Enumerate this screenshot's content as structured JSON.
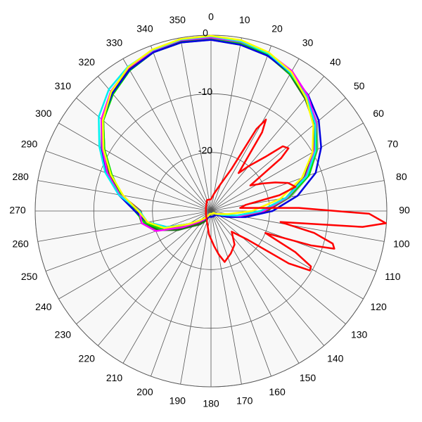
{
  "chart_data": {
    "type": "polar",
    "rlim": [
      -30,
      0
    ],
    "rticks": [
      -20,
      -10,
      0
    ],
    "thetaticks": [
      0,
      10,
      20,
      30,
      40,
      50,
      60,
      70,
      80,
      90,
      100,
      110,
      120,
      130,
      140,
      150,
      160,
      170,
      180,
      190,
      200,
      210,
      220,
      230,
      240,
      250,
      260,
      270,
      280,
      290,
      300,
      310,
      320,
      330,
      340,
      350
    ],
    "theta": [
      0,
      10,
      20,
      30,
      40,
      50,
      60,
      70,
      80,
      90,
      100,
      110,
      120,
      130,
      140,
      150,
      160,
      170,
      180,
      190,
      200,
      210,
      220,
      230,
      240,
      250,
      260,
      270,
      280,
      290,
      300,
      310,
      320,
      330,
      340,
      350
    ],
    "grid": true,
    "series": [
      {
        "color": "#a0a0a0",
        "values": [
          -0.8,
          -1.2,
          -1.8,
          -3.0,
          -4.6,
          -6.4,
          -9.0,
          -12.2,
          -16.2,
          -20.5,
          -24.5,
          -27.5,
          -29,
          -29.5,
          -29.5,
          -29.5,
          -29.5,
          -29.5,
          -29.5,
          -29.5,
          -29.5,
          -29,
          -28,
          -27,
          -25,
          -21.5,
          -18.8,
          -17.6,
          -14.2,
          -11.2,
          -8.4,
          -5.6,
          -3.6,
          -2.1,
          -1.2,
          -0.8
        ]
      },
      {
        "color": "#804020",
        "values": [
          -0.3,
          -0.8,
          -1.6,
          -2.9,
          -4.8,
          -6.8,
          -9.3,
          -12.5,
          -16.5,
          -20.5,
          -24.5,
          -27.5,
          -29,
          -29,
          -29,
          -29,
          -29,
          -29,
          -29,
          -29,
          -29,
          -28.5,
          -27.5,
          -26.5,
          -24,
          -20.5,
          -18.5,
          -18,
          -14.5,
          -11.5,
          -8.8,
          -5.8,
          -3.6,
          -2,
          -1,
          -0.4
        ]
      },
      {
        "color": "#207020",
        "values": [
          -0.5,
          -0.9,
          -1.7,
          -3.1,
          -5,
          -7,
          -9.8,
          -13,
          -17,
          -21.5,
          -25.5,
          -28,
          -29,
          -29.5,
          -29.5,
          -29.5,
          -29.5,
          -29.5,
          -29.5,
          -29.5,
          -29,
          -28,
          -27,
          -26,
          -23.5,
          -20.5,
          -18,
          -17.5,
          -14.5,
          -11.5,
          -9,
          -6,
          -3.8,
          -2.2,
          -1.2,
          -0.6
        ]
      },
      {
        "color": "#00e000",
        "values": [
          -0.7,
          -1,
          -1.6,
          -3,
          -4.6,
          -6.6,
          -9.2,
          -12.2,
          -16.5,
          -21,
          -25,
          -28,
          -29,
          -29.5,
          -29.5,
          -29.5,
          -29.5,
          -29.5,
          -29.5,
          -29.5,
          -29.5,
          -29,
          -28.5,
          -27.5,
          -25,
          -21,
          -18.5,
          -17,
          -14.5,
          -12,
          -9,
          -6,
          -4,
          -2.3,
          -1.2,
          -0.8
        ]
      },
      {
        "color": "#0000e0",
        "values": [
          -0.8,
          -1.2,
          -1.8,
          -2.8,
          -4.2,
          -6.0,
          -8.3,
          -11,
          -15,
          -19.5,
          -24,
          -27,
          -28.5,
          -29,
          -29,
          -29,
          -29,
          -29,
          -29,
          -29,
          -29,
          -28.5,
          -28,
          -27,
          -25.5,
          -22,
          -19,
          -17,
          -14,
          -11,
          -8.5,
          -5.8,
          -3.8,
          -2.2,
          -1.2,
          -0.8
        ]
      },
      {
        "color": "#ff00ff",
        "values": [
          -0.4,
          -0.7,
          -1.3,
          -2.4,
          -4.3,
          -6.6,
          -9.6,
          -12.8,
          -16.8,
          -21,
          -25,
          -28,
          -29,
          -29.5,
          -29.5,
          -29.5,
          -29.5,
          -29.5,
          -29.5,
          -29.5,
          -29.5,
          -29,
          -28,
          -27,
          -24.5,
          -20,
          -18,
          -17.8,
          -14.2,
          -11.2,
          -8.6,
          -5.6,
          -3.4,
          -1.8,
          -0.9,
          -0.4
        ]
      },
      {
        "color": "#00f0f0",
        "values": [
          -0.2,
          -0.6,
          -1.4,
          -2.8,
          -4.6,
          -6.8,
          -9.4,
          -12.6,
          -17,
          -21.5,
          -25.5,
          -28,
          -29,
          -29.5,
          -29.5,
          -29.5,
          -29.5,
          -29.5,
          -29.5,
          -29.5,
          -29.5,
          -29,
          -28.5,
          -27.5,
          -25.5,
          -22,
          -19,
          -17.8,
          -14,
          -10.8,
          -8,
          -5,
          -2.9,
          -1.6,
          -0.8,
          -0.3
        ]
      },
      {
        "color": "#ffff00",
        "values": [
          -0.1,
          -0.4,
          -1.2,
          -2.6,
          -4.8,
          -7.2,
          -10,
          -13.5,
          -18,
          -23,
          -27,
          -28.5,
          -29,
          -29.5,
          -29.5,
          -29.5,
          -29.5,
          -29.5,
          -29.5,
          -29.5,
          -29.5,
          -29,
          -28.5,
          -27.5,
          -25.5,
          -21.5,
          -19,
          -17.6,
          -14.8,
          -11.8,
          -8.8,
          -5.9,
          -3.5,
          -1.7,
          -0.7,
          -0.2
        ]
      },
      {
        "color": "#ff0000",
        "theta": [
          0,
          10,
          20,
          26,
          29,
          31,
          33,
          36,
          40,
          45,
          48,
          51,
          53,
          57,
          62,
          66,
          70,
          74,
          77,
          80,
          84,
          88,
          91,
          94,
          96,
          99,
          102,
          105,
          107,
          109,
          112,
          116,
          119,
          121,
          124,
          128,
          135,
          145,
          155,
          165,
          170,
          175,
          185,
          200,
          240,
          300,
          340
        ],
        "values": [
          -28,
          -27,
          -25,
          -22,
          -14,
          -11.8,
          -14,
          -22,
          -20,
          -17,
          -13.5,
          -13,
          -15,
          -22,
          -20,
          -18,
          -16,
          -15,
          -18,
          -24,
          -25,
          -15,
          -3,
          -0.1,
          -4,
          -18,
          -12,
          -8.5,
          -8,
          -12,
          -20,
          -14,
          -10.5,
          -10.3,
          -14,
          -22,
          -25,
          -23,
          -22,
          -21,
          -22.5,
          -24,
          -26,
          -28,
          -29,
          -29,
          -28
        ]
      }
    ]
  }
}
